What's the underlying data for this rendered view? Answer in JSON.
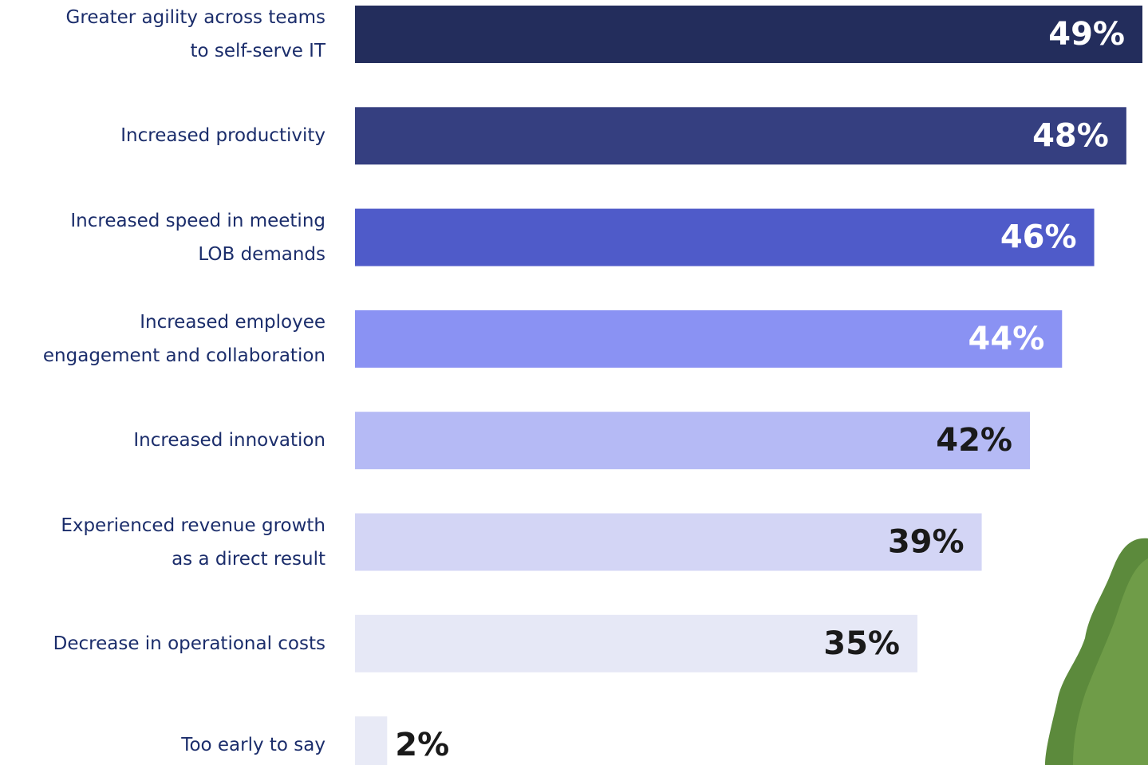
{
  "chart_data": {
    "type": "hbar",
    "categories": [
      "Greater agility across teams\nto self-serve IT",
      "Increased productivity",
      "Increased speed in meeting\nLOB demands",
      "Increased employee\nengagement and collaboration",
      "Increased innovation",
      "Experienced revenue growth\nas a direct result",
      "Decrease in operational costs",
      "Too early to say"
    ],
    "values": [
      49,
      48,
      46,
      44,
      42,
      39,
      35,
      2
    ],
    "value_labels": [
      "49%",
      "48%",
      "46%",
      "44%",
      "42%",
      "39%",
      "35%",
      "2%"
    ],
    "colors": [
      "#232d5c",
      "#353f80",
      "#4f5bc9",
      "#8a92f3",
      "#b5baf5",
      "#d3d5f5",
      "#e6e8f6",
      "#e8eaf6"
    ]
  }
}
